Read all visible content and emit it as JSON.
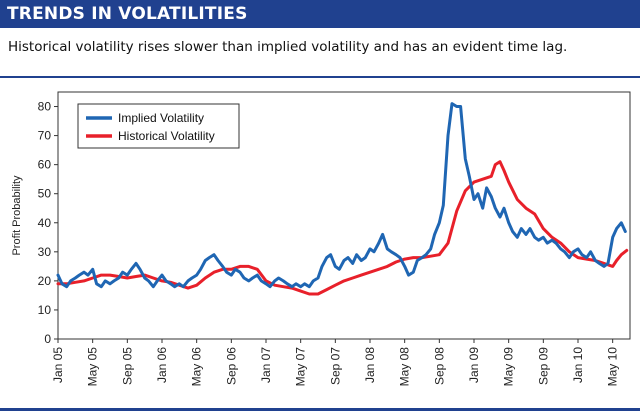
{
  "header": {
    "title": "TRENDS IN VOLATILITIES",
    "subtitle": "Historical volatility rises slower than implied volatility and has an evident time lag."
  },
  "colors": {
    "brand": "#20418f",
    "implied": "#1f66b3",
    "historical": "#e8202a"
  },
  "chart_data": {
    "type": "line",
    "title": "",
    "xlabel": "",
    "ylabel": "Profit Probability",
    "ylim": [
      0,
      85
    ],
    "yticks": [
      0,
      10,
      20,
      30,
      40,
      50,
      60,
      70,
      80
    ],
    "xlim": [
      "2005-01",
      "2010-07"
    ],
    "xticks": [
      "Jan 05",
      "May 05",
      "Sep 05",
      "Jan 06",
      "May 06",
      "Sep 06",
      "Jan 07",
      "May 07",
      "Sep 07",
      "Jan 08",
      "May 08",
      "Sep 08",
      "Jan 09",
      "May 09",
      "Sep 09",
      "Jan 10",
      "May 10"
    ],
    "legend_position": "top-left",
    "grid": false,
    "series": [
      {
        "name": "Implied Volatility",
        "color": "#1f66b3",
        "points": [
          [
            "2005-01-01",
            22
          ],
          [
            "2005-01-15",
            19
          ],
          [
            "2005-02-01",
            18
          ],
          [
            "2005-02-15",
            20
          ],
          [
            "2005-03-01",
            21
          ],
          [
            "2005-03-15",
            22
          ],
          [
            "2005-04-01",
            23
          ],
          [
            "2005-04-15",
            22
          ],
          [
            "2005-05-01",
            24
          ],
          [
            "2005-05-15",
            19
          ],
          [
            "2005-06-01",
            18
          ],
          [
            "2005-06-15",
            20
          ],
          [
            "2005-07-01",
            19
          ],
          [
            "2005-07-15",
            20
          ],
          [
            "2005-08-01",
            21
          ],
          [
            "2005-08-15",
            23
          ],
          [
            "2005-09-01",
            22
          ],
          [
            "2005-09-15",
            24
          ],
          [
            "2005-10-01",
            26
          ],
          [
            "2005-10-15",
            24
          ],
          [
            "2005-11-01",
            21
          ],
          [
            "2005-11-15",
            20
          ],
          [
            "2005-12-01",
            18
          ],
          [
            "2005-12-15",
            20
          ],
          [
            "2006-01-01",
            22
          ],
          [
            "2006-01-15",
            20
          ],
          [
            "2006-02-01",
            19
          ],
          [
            "2006-02-15",
            18
          ],
          [
            "2006-03-01",
            19
          ],
          [
            "2006-03-15",
            18
          ],
          [
            "2006-04-01",
            20
          ],
          [
            "2006-04-15",
            21
          ],
          [
            "2006-05-01",
            22
          ],
          [
            "2006-05-15",
            24
          ],
          [
            "2006-06-01",
            27
          ],
          [
            "2006-06-15",
            28
          ],
          [
            "2006-07-01",
            29
          ],
          [
            "2006-07-15",
            27
          ],
          [
            "2006-08-01",
            25
          ],
          [
            "2006-08-15",
            23
          ],
          [
            "2006-09-01",
            22
          ],
          [
            "2006-09-15",
            24
          ],
          [
            "2006-10-01",
            23
          ],
          [
            "2006-10-15",
            21
          ],
          [
            "2006-11-01",
            20
          ],
          [
            "2006-11-15",
            21
          ],
          [
            "2006-12-01",
            22
          ],
          [
            "2006-12-15",
            20
          ],
          [
            "2007-01-01",
            19
          ],
          [
            "2007-01-15",
            18
          ],
          [
            "2007-02-01",
            20
          ],
          [
            "2007-02-15",
            21
          ],
          [
            "2007-03-01",
            20
          ],
          [
            "2007-03-15",
            19
          ],
          [
            "2007-04-01",
            18
          ],
          [
            "2007-04-15",
            19
          ],
          [
            "2007-05-01",
            18
          ],
          [
            "2007-05-15",
            19
          ],
          [
            "2007-06-01",
            18
          ],
          [
            "2007-06-15",
            20
          ],
          [
            "2007-07-01",
            21
          ],
          [
            "2007-07-15",
            25
          ],
          [
            "2007-08-01",
            28
          ],
          [
            "2007-08-15",
            29
          ],
          [
            "2007-09-01",
            25
          ],
          [
            "2007-09-15",
            24
          ],
          [
            "2007-10-01",
            27
          ],
          [
            "2007-10-15",
            28
          ],
          [
            "2007-11-01",
            26
          ],
          [
            "2007-11-15",
            29
          ],
          [
            "2007-12-01",
            27
          ],
          [
            "2007-12-15",
            28
          ],
          [
            "2008-01-01",
            31
          ],
          [
            "2008-01-15",
            30
          ],
          [
            "2008-02-01",
            33
          ],
          [
            "2008-02-15",
            36
          ],
          [
            "2008-03-01",
            31
          ],
          [
            "2008-03-15",
            30
          ],
          [
            "2008-04-01",
            29
          ],
          [
            "2008-04-15",
            28
          ],
          [
            "2008-05-01",
            25
          ],
          [
            "2008-05-15",
            22
          ],
          [
            "2008-06-01",
            23
          ],
          [
            "2008-06-15",
            27
          ],
          [
            "2008-07-01",
            28
          ],
          [
            "2008-07-15",
            29
          ],
          [
            "2008-08-01",
            31
          ],
          [
            "2008-08-15",
            36
          ],
          [
            "2008-09-01",
            40
          ],
          [
            "2008-09-15",
            46
          ],
          [
            "2008-10-01",
            70
          ],
          [
            "2008-10-15",
            81
          ],
          [
            "2008-11-01",
            80
          ],
          [
            "2008-11-15",
            80
          ],
          [
            "2008-12-01",
            62
          ],
          [
            "2008-12-15",
            56
          ],
          [
            "2009-01-01",
            48
          ],
          [
            "2009-01-15",
            50
          ],
          [
            "2009-02-01",
            45
          ],
          [
            "2009-02-15",
            52
          ],
          [
            "2009-03-01",
            49
          ],
          [
            "2009-03-15",
            45
          ],
          [
            "2009-04-01",
            42
          ],
          [
            "2009-04-15",
            45
          ],
          [
            "2009-05-01",
            40
          ],
          [
            "2009-05-15",
            37
          ],
          [
            "2009-06-01",
            35
          ],
          [
            "2009-06-15",
            38
          ],
          [
            "2009-07-01",
            36
          ],
          [
            "2009-07-15",
            38
          ],
          [
            "2009-08-01",
            35
          ],
          [
            "2009-08-15",
            34
          ],
          [
            "2009-09-01",
            35
          ],
          [
            "2009-09-15",
            33
          ],
          [
            "2009-10-01",
            34
          ],
          [
            "2009-10-15",
            33
          ],
          [
            "2009-11-01",
            31
          ],
          [
            "2009-11-15",
            30
          ],
          [
            "2009-12-01",
            28
          ],
          [
            "2009-12-15",
            30
          ],
          [
            "2010-01-01",
            31
          ],
          [
            "2010-01-15",
            29
          ],
          [
            "2010-02-01",
            28
          ],
          [
            "2010-02-15",
            30
          ],
          [
            "2010-03-01",
            27
          ],
          [
            "2010-03-15",
            26
          ],
          [
            "2010-04-01",
            25
          ],
          [
            "2010-04-15",
            26
          ],
          [
            "2010-05-01",
            35
          ],
          [
            "2010-05-15",
            38
          ],
          [
            "2010-06-01",
            40
          ],
          [
            "2010-06-15",
            37
          ]
        ]
      },
      {
        "name": "Historical Volatility",
        "color": "#e8202a",
        "points": [
          [
            "2005-01-01",
            19
          ],
          [
            "2005-02-01",
            19
          ],
          [
            "2005-03-01",
            19.5
          ],
          [
            "2005-04-01",
            20
          ],
          [
            "2005-05-01",
            21
          ],
          [
            "2005-06-01",
            22
          ],
          [
            "2005-07-01",
            22
          ],
          [
            "2005-08-01",
            21.5
          ],
          [
            "2005-09-01",
            21
          ],
          [
            "2005-10-01",
            21.5
          ],
          [
            "2005-11-01",
            22
          ],
          [
            "2005-12-01",
            21
          ],
          [
            "2006-01-01",
            20
          ],
          [
            "2006-02-01",
            19.5
          ],
          [
            "2006-03-01",
            18.5
          ],
          [
            "2006-04-01",
            17.5
          ],
          [
            "2006-05-01",
            18.5
          ],
          [
            "2006-06-01",
            21
          ],
          [
            "2006-07-01",
            23
          ],
          [
            "2006-08-01",
            24
          ],
          [
            "2006-09-01",
            24
          ],
          [
            "2006-10-01",
            25
          ],
          [
            "2006-11-01",
            25
          ],
          [
            "2006-12-01",
            24
          ],
          [
            "2007-01-01",
            20
          ],
          [
            "2007-02-01",
            18.5
          ],
          [
            "2007-03-01",
            18
          ],
          [
            "2007-04-01",
            17.5
          ],
          [
            "2007-05-01",
            16.5
          ],
          [
            "2007-06-01",
            15.5
          ],
          [
            "2007-07-01",
            15.5
          ],
          [
            "2007-08-01",
            17
          ],
          [
            "2007-09-01",
            18.5
          ],
          [
            "2007-10-01",
            20
          ],
          [
            "2007-11-01",
            21
          ],
          [
            "2007-12-01",
            22
          ],
          [
            "2008-01-01",
            23
          ],
          [
            "2008-02-01",
            24
          ],
          [
            "2008-03-01",
            25
          ],
          [
            "2008-04-01",
            26.5
          ],
          [
            "2008-05-01",
            27.5
          ],
          [
            "2008-06-01",
            28
          ],
          [
            "2008-07-01",
            28
          ],
          [
            "2008-08-01",
            28.5
          ],
          [
            "2008-09-01",
            29
          ],
          [
            "2008-10-01",
            33
          ],
          [
            "2008-11-01",
            44
          ],
          [
            "2008-12-01",
            51
          ],
          [
            "2009-01-01",
            54
          ],
          [
            "2009-02-01",
            55
          ],
          [
            "2009-03-01",
            56
          ],
          [
            "2009-03-15",
            60
          ],
          [
            "2009-04-01",
            61
          ],
          [
            "2009-04-15",
            58
          ],
          [
            "2009-05-01",
            54
          ],
          [
            "2009-06-01",
            48
          ],
          [
            "2009-07-01",
            45
          ],
          [
            "2009-08-01",
            43
          ],
          [
            "2009-09-01",
            38
          ],
          [
            "2009-10-01",
            35
          ],
          [
            "2009-11-01",
            33
          ],
          [
            "2009-12-01",
            30
          ],
          [
            "2010-01-01",
            28
          ],
          [
            "2010-02-01",
            27.5
          ],
          [
            "2010-03-01",
            27
          ],
          [
            "2010-04-01",
            26
          ],
          [
            "2010-05-01",
            25
          ],
          [
            "2010-05-15",
            27
          ],
          [
            "2010-06-01",
            29
          ],
          [
            "2010-06-20",
            30.5
          ]
        ]
      }
    ]
  }
}
